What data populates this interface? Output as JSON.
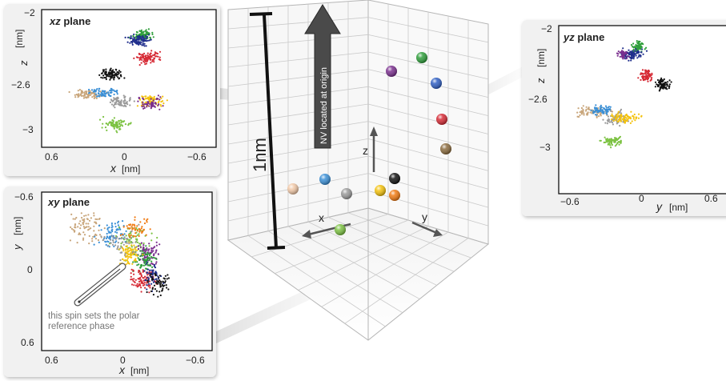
{
  "colors": {
    "green": "#2e9e3a",
    "blue": "#2f5fc4",
    "red": "#d62a35",
    "purple": "#7a2f8e",
    "black": "#111111",
    "brown": "#8a6a3c",
    "yellow": "#f4c20d",
    "orange": "#f07a12",
    "gray": "#9a9a9a",
    "peach": "#f2c9a8",
    "lightblue": "#3a8fd6",
    "lime": "#7cc242",
    "tan": "#c8a57a",
    "navy": "#1f2e8c",
    "grid": "#c9c9c9",
    "arrow": "#444444"
  },
  "main": {
    "scale_label": "1nm",
    "nv_label": "NV located at origin",
    "axis_x": "x",
    "axis_y": "y",
    "axis_z": "z"
  },
  "panels": {
    "xz": {
      "title_axes": "xz",
      "title_word": " plane",
      "y_axis_var": "z",
      "y_axis_unit": "[nm]",
      "y_ticks": [
        "−2",
        "−2.6",
        "−3"
      ],
      "x_ticks": [
        "0.6",
        "0",
        "−0.6"
      ],
      "x_axis_var": "x",
      "x_axis_unit": "[nm]"
    },
    "xy": {
      "title_axes": "xy",
      "title_word": " plane",
      "y_axis_var": "y",
      "y_axis_unit": "[nm]",
      "y_ticks": [
        "−0.6",
        "0",
        "0.6"
      ],
      "x_ticks": [
        "0.6",
        "0",
        "−0.6"
      ],
      "x_axis_var": "x",
      "x_axis_unit": "[nm]",
      "annotation_line1": "this spin sets the polar",
      "annotation_line2": "reference phase"
    },
    "yz": {
      "title_axes": "yz",
      "title_word": " plane",
      "y_axis_var": "z",
      "y_axis_unit": "[nm]",
      "y_ticks": [
        "−2",
        "−2.6",
        "−3"
      ],
      "x_ticks": [
        "−0.6",
        "0",
        "0.6"
      ],
      "x_axis_var": "y",
      "x_axis_unit": "[nm]"
    }
  }
}
